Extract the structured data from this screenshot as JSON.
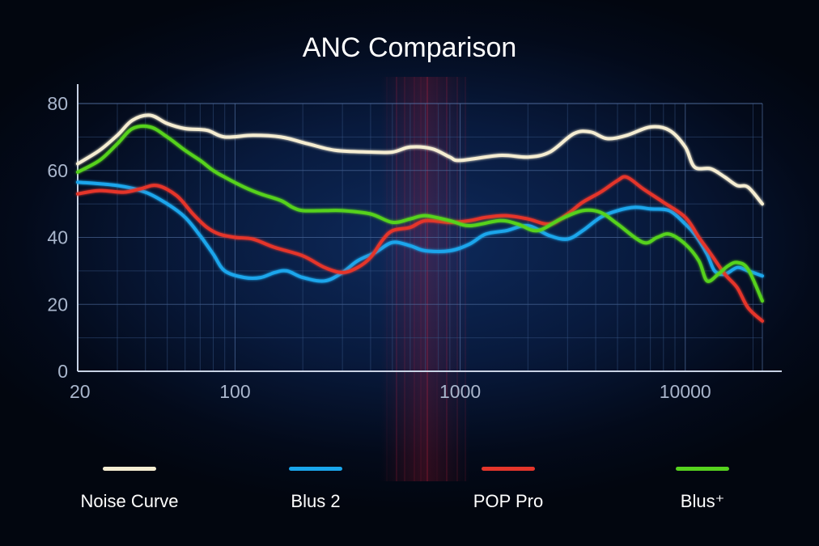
{
  "chart_data": {
    "type": "line",
    "title": "ANC Comparison",
    "xscale": "log",
    "xlim": [
      20,
      22000
    ],
    "ylim": [
      0,
      80
    ],
    "xticks": [
      {
        "value": 20,
        "label": "20"
      },
      {
        "value": 100,
        "label": "100"
      },
      {
        "value": 1000,
        "label": "1000"
      },
      {
        "value": 10000,
        "label": "10000"
      }
    ],
    "yticks": [
      {
        "value": 0,
        "label": "0"
      },
      {
        "value": 20,
        "label": "20"
      },
      {
        "value": 40,
        "label": "40"
      },
      {
        "value": 60,
        "label": "60"
      },
      {
        "value": 80,
        "label": "80"
      }
    ],
    "grid": true,
    "legend_position": "bottom",
    "series": [
      {
        "name": "Noise Curve",
        "color": "#f5edd2",
        "points": [
          [
            20,
            62
          ],
          [
            25,
            66
          ],
          [
            30,
            70.5
          ],
          [
            35,
            75
          ],
          [
            42,
            76.5
          ],
          [
            50,
            74
          ],
          [
            60,
            72.5
          ],
          [
            75,
            72
          ],
          [
            90,
            70
          ],
          [
            120,
            70.5
          ],
          [
            160,
            70
          ],
          [
            210,
            68
          ],
          [
            280,
            66
          ],
          [
            400,
            65.5
          ],
          [
            500,
            65.5
          ],
          [
            600,
            67
          ],
          [
            750,
            66.5
          ],
          [
            900,
            64
          ],
          [
            1000,
            63
          ],
          [
            1500,
            64.5
          ],
          [
            2000,
            64
          ],
          [
            2500,
            65.5
          ],
          [
            3200,
            71
          ],
          [
            3800,
            71.5
          ],
          [
            4500,
            69.5
          ],
          [
            5500,
            70.5
          ],
          [
            7000,
            73
          ],
          [
            8500,
            72
          ],
          [
            10000,
            67
          ],
          [
            11000,
            61
          ],
          [
            13000,
            60.5
          ],
          [
            15000,
            58
          ],
          [
            17000,
            55.5
          ],
          [
            19000,
            55
          ],
          [
            22000,
            50
          ]
        ]
      },
      {
        "name": "Blus 2",
        "color": "#1aa6ec",
        "points": [
          [
            20,
            56.5
          ],
          [
            30,
            55.5
          ],
          [
            40,
            53.5
          ],
          [
            50,
            50
          ],
          [
            60,
            46
          ],
          [
            70,
            40.5
          ],
          [
            80,
            35
          ],
          [
            90,
            30
          ],
          [
            110,
            28
          ],
          [
            130,
            28
          ],
          [
            150,
            29.5
          ],
          [
            170,
            30
          ],
          [
            200,
            28
          ],
          [
            250,
            27
          ],
          [
            300,
            29.5
          ],
          [
            350,
            33
          ],
          [
            420,
            35.5
          ],
          [
            500,
            38.5
          ],
          [
            600,
            37.5
          ],
          [
            700,
            36
          ],
          [
            900,
            36
          ],
          [
            1100,
            38
          ],
          [
            1300,
            41
          ],
          [
            1600,
            42
          ],
          [
            2000,
            43.5
          ],
          [
            2500,
            40.5
          ],
          [
            3000,
            39.5
          ],
          [
            3500,
            42
          ],
          [
            4200,
            46
          ],
          [
            5000,
            48
          ],
          [
            6000,
            49
          ],
          [
            7000,
            48.5
          ],
          [
            8500,
            48
          ],
          [
            10000,
            44
          ],
          [
            11000,
            41
          ],
          [
            12500,
            35
          ],
          [
            13500,
            30
          ],
          [
            15000,
            29
          ],
          [
            17000,
            31
          ],
          [
            19000,
            30
          ],
          [
            22000,
            28.5
          ]
        ]
      },
      {
        "name": "POP Pro",
        "color": "#e5362b",
        "points": [
          [
            20,
            53
          ],
          [
            25,
            54
          ],
          [
            32,
            53.5
          ],
          [
            38,
            54.5
          ],
          [
            45,
            55.5
          ],
          [
            55,
            52.5
          ],
          [
            65,
            47
          ],
          [
            75,
            43
          ],
          [
            85,
            41
          ],
          [
            100,
            40
          ],
          [
            120,
            39.5
          ],
          [
            150,
            37
          ],
          [
            200,
            34.5
          ],
          [
            250,
            31
          ],
          [
            300,
            29.5
          ],
          [
            350,
            31
          ],
          [
            400,
            34
          ],
          [
            450,
            39
          ],
          [
            500,
            42
          ],
          [
            600,
            43
          ],
          [
            700,
            45
          ],
          [
            900,
            44.5
          ],
          [
            1100,
            45
          ],
          [
            1300,
            46
          ],
          [
            1600,
            46.5
          ],
          [
            2000,
            45.5
          ],
          [
            2500,
            44
          ],
          [
            3000,
            47
          ],
          [
            3500,
            50.5
          ],
          [
            4200,
            53.5
          ],
          [
            5000,
            57
          ],
          [
            5500,
            58
          ],
          [
            6500,
            54.5
          ],
          [
            8000,
            50.5
          ],
          [
            10000,
            46
          ],
          [
            11500,
            40
          ],
          [
            13000,
            35
          ],
          [
            15000,
            29
          ],
          [
            17000,
            25
          ],
          [
            19000,
            19
          ],
          [
            22000,
            15
          ]
        ]
      },
      {
        "name": "Blus⁺",
        "color": "#56d21e",
        "points": [
          [
            20,
            59.5
          ],
          [
            25,
            63
          ],
          [
            30,
            68
          ],
          [
            35,
            72.5
          ],
          [
            42,
            73
          ],
          [
            50,
            70
          ],
          [
            60,
            66
          ],
          [
            70,
            63
          ],
          [
            80,
            60
          ],
          [
            90,
            58
          ],
          [
            110,
            55
          ],
          [
            130,
            53
          ],
          [
            160,
            51
          ],
          [
            180,
            49
          ],
          [
            200,
            48
          ],
          [
            250,
            48
          ],
          [
            300,
            48
          ],
          [
            400,
            47
          ],
          [
            500,
            44.5
          ],
          [
            600,
            45.5
          ],
          [
            700,
            46.5
          ],
          [
            900,
            45
          ],
          [
            1100,
            43.5
          ],
          [
            1500,
            45
          ],
          [
            1800,
            44
          ],
          [
            2200,
            42
          ],
          [
            2800,
            45.5
          ],
          [
            3500,
            48
          ],
          [
            4200,
            47.5
          ],
          [
            5000,
            44
          ],
          [
            6500,
            38.5
          ],
          [
            7500,
            40
          ],
          [
            8500,
            41
          ],
          [
            10000,
            38
          ],
          [
            11500,
            33
          ],
          [
            12500,
            27
          ],
          [
            14000,
            29
          ],
          [
            15500,
            31.5
          ],
          [
            17000,
            32.5
          ],
          [
            19000,
            30.5
          ],
          [
            22000,
            21
          ]
        ]
      }
    ]
  }
}
